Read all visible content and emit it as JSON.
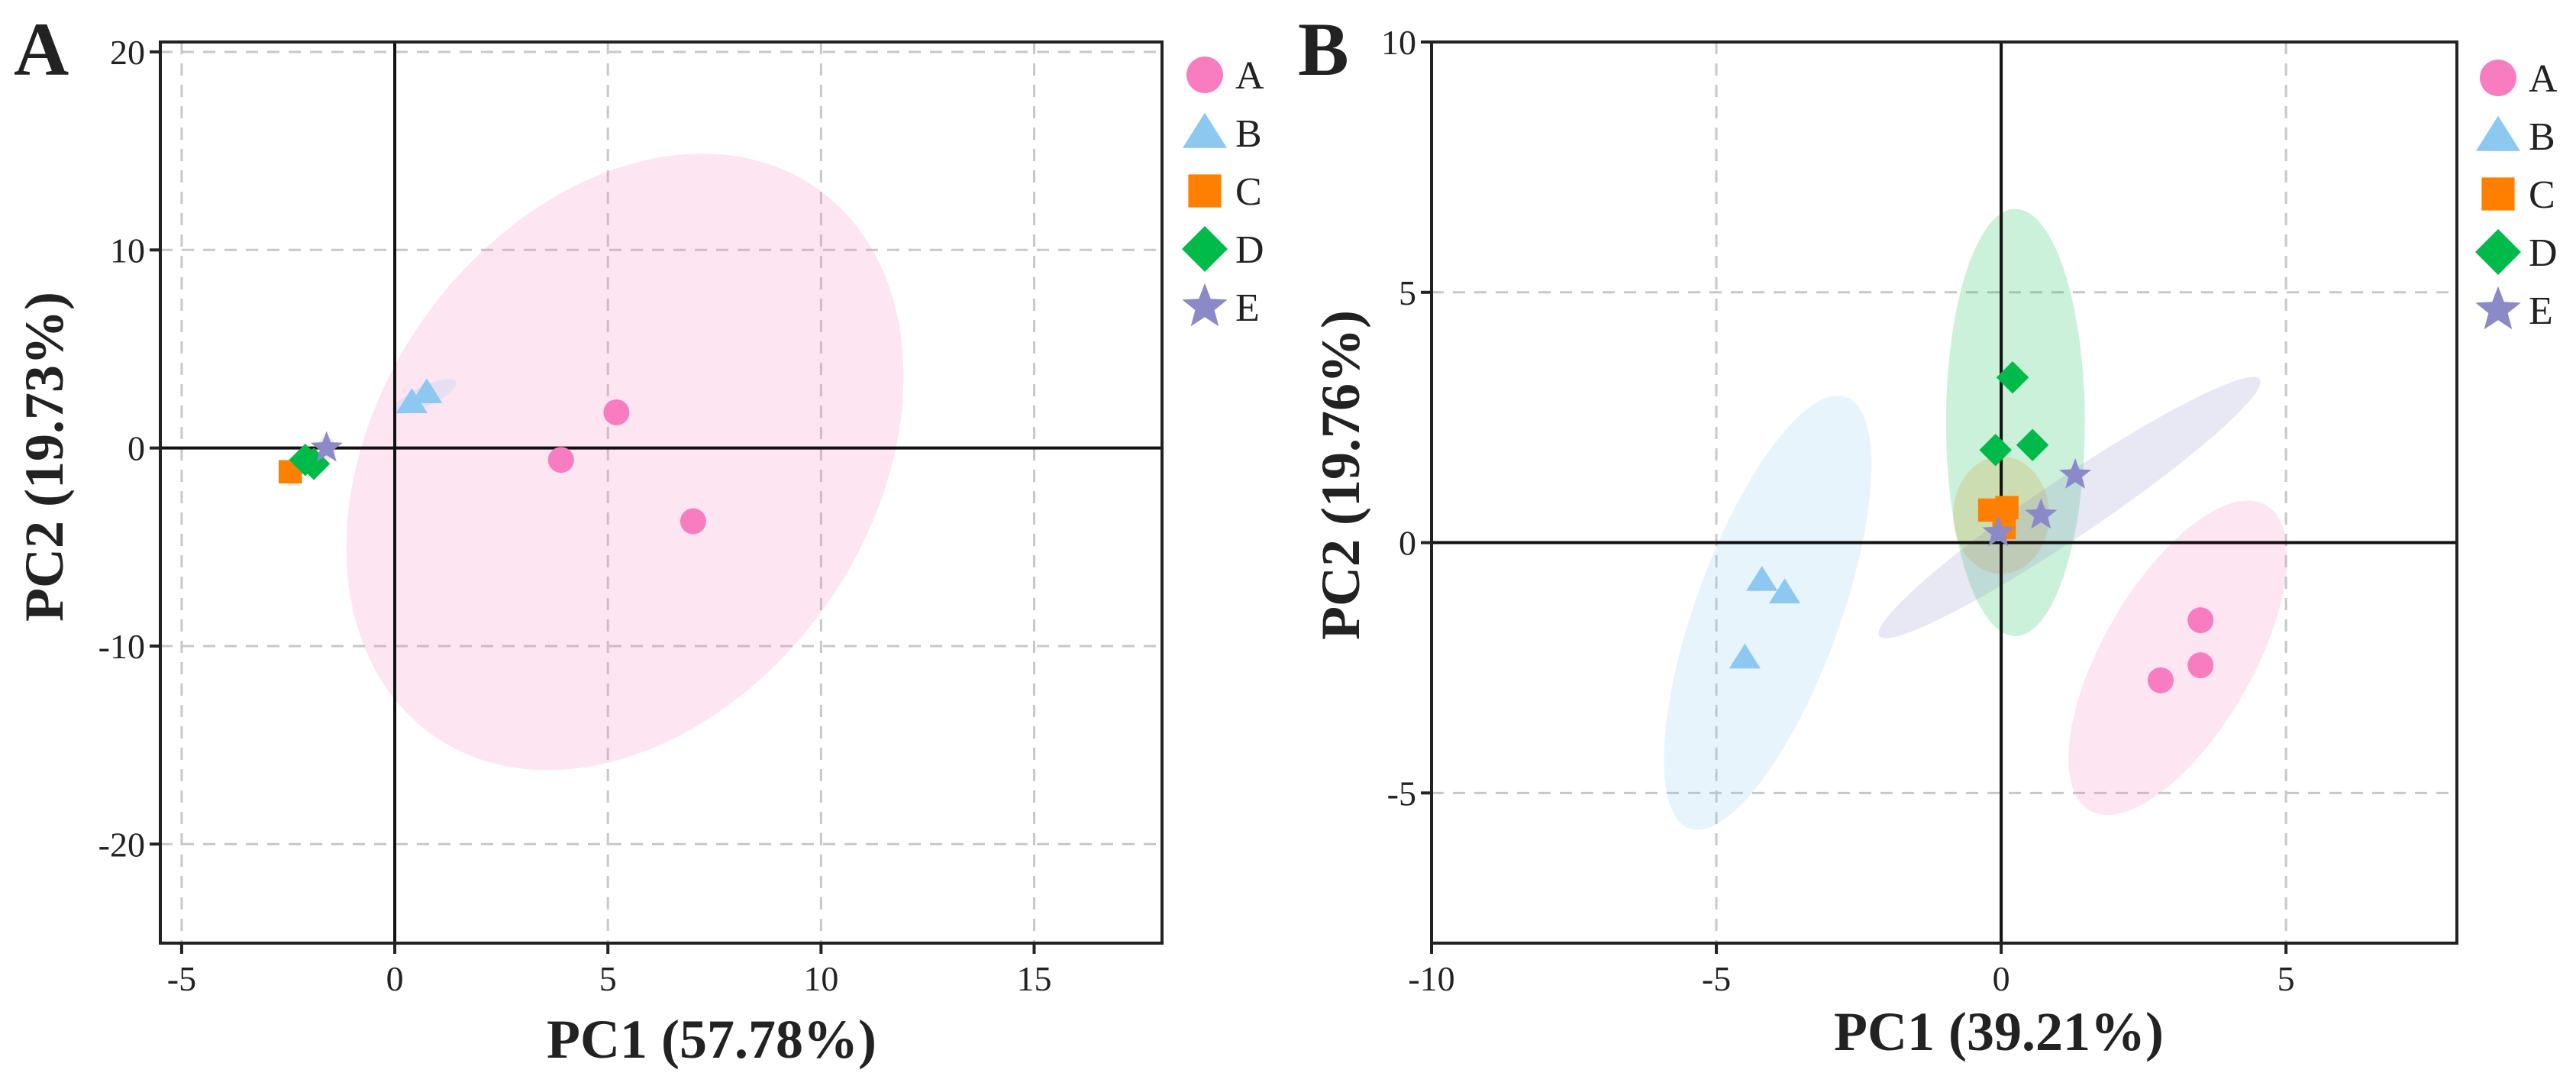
{
  "charts": [
    {
      "panel_label": "A",
      "xlabel": "PC1  (57.78%)",
      "ylabel": "PC2  (19.73%)",
      "xticks": [
        {
          "v": -5,
          "label": "-5"
        },
        {
          "v": 0,
          "label": "0"
        },
        {
          "v": 5,
          "label": "5"
        },
        {
          "v": 10,
          "label": "10"
        },
        {
          "v": 15,
          "label": "15"
        }
      ],
      "yticks": [
        {
          "v": 20,
          "label": "20"
        },
        {
          "v": 10,
          "label": "10"
        },
        {
          "v": 0,
          "label": "0"
        },
        {
          "v": -10,
          "label": "-10"
        },
        {
          "v": -20,
          "label": "-20"
        }
      ]
    },
    {
      "panel_label": "B",
      "xlabel": "PC1  (39.21%)",
      "ylabel": "PC2  (19.76%)",
      "xticks": [
        {
          "v": -10,
          "label": "-10"
        },
        {
          "v": -5,
          "label": "-5"
        },
        {
          "v": 0,
          "label": "0"
        },
        {
          "v": 5,
          "label": "5"
        }
      ],
      "yticks": [
        {
          "v": 10,
          "label": "10"
        },
        {
          "v": 5,
          "label": "5"
        },
        {
          "v": 0,
          "label": "0"
        },
        {
          "v": -5,
          "label": "-5"
        }
      ]
    }
  ],
  "legend": [
    {
      "name": "A",
      "marker": "circle",
      "color": "#F77DC0"
    },
    {
      "name": "B",
      "marker": "triangle",
      "color": "#8DC8F0"
    },
    {
      "name": "C",
      "marker": "square",
      "color": "#FF8000"
    },
    {
      "name": "D",
      "marker": "diamond",
      "color": "#00BB4A"
    },
    {
      "name": "E",
      "marker": "star",
      "color": "#8B89C8"
    }
  ],
  "chart_data": [
    {
      "type": "scatter",
      "title": "",
      "xlabel": "PC1  (57.78%)",
      "ylabel": "PC2  (19.73%)",
      "xlim": [
        -5.5,
        18
      ],
      "ylim": [
        -25,
        20.5
      ],
      "grid": true,
      "legend_position": "right",
      "series": [
        {
          "name": "A",
          "points": [
            [
              3.9,
              -0.6
            ],
            [
              5.2,
              1.8
            ],
            [
              7.0,
              -3.7
            ]
          ],
          "ellipse": {
            "cx": 5.4,
            "cy": -0.7,
            "rx": 8.5,
            "ry": 11.5,
            "angle_deg": 35
          }
        },
        {
          "name": "B",
          "points": [
            [
              0.4,
              2.3
            ],
            [
              0.75,
              2.8
            ]
          ],
          "ellipse": {
            "cx": 0.7,
            "cy": 2.6,
            "rx": 1.2,
            "ry": 0.35,
            "angle_deg": -25
          }
        },
        {
          "name": "C",
          "points": [
            [
              -2.45,
              -1.2
            ]
          ],
          "ellipse": {
            "cx": -2.4,
            "cy": -1.2,
            "rx": 0.25,
            "ry": 0.5,
            "angle_deg": 0
          }
        },
        {
          "name": "D",
          "points": [
            [
              -2.1,
              -0.6
            ],
            [
              -1.9,
              -0.8
            ]
          ],
          "ellipse": {
            "cx": -2.0,
            "cy": -0.7,
            "rx": 0.3,
            "ry": 0.3,
            "angle_deg": 0
          }
        },
        {
          "name": "E",
          "points": [
            [
              -1.6,
              0.0
            ]
          ],
          "ellipse": {
            "cx": -1.6,
            "cy": 0.0,
            "rx": 0.3,
            "ry": 0.4,
            "angle_deg": 0
          }
        }
      ]
    },
    {
      "type": "scatter",
      "title": "",
      "xlabel": "PC1  (39.21%)",
      "ylabel": "PC2  (19.76%)",
      "xlim": [
        -10,
        8
      ],
      "ylim": [
        -8,
        10
      ],
      "grid": true,
      "legend_position": "right",
      "series": [
        {
          "name": "A",
          "points": [
            [
              3.5,
              -1.55
            ],
            [
              3.5,
              -2.45
            ],
            [
              2.8,
              -2.75
            ]
          ],
          "ellipse": {
            "cx": 3.1,
            "cy": -2.3,
            "rx": 1.4,
            "ry": 3.3,
            "angle_deg": 30
          }
        },
        {
          "name": "B",
          "points": [
            [
              -4.2,
              -0.75
            ],
            [
              -3.8,
              -1.0
            ],
            [
              -4.5,
              -2.3
            ]
          ],
          "ellipse": {
            "cx": -4.1,
            "cy": -1.4,
            "rx": 1.35,
            "ry": 4.3,
            "angle_deg": 20
          }
        },
        {
          "name": "C",
          "points": [
            [
              -0.2,
              0.65
            ],
            [
              0.05,
              0.3
            ],
            [
              0.1,
              0.7
            ]
          ],
          "ellipse": {
            "cx": 0.0,
            "cy": 0.55,
            "rx": 0.9,
            "ry": 1.1,
            "angle_deg": 0
          }
        },
        {
          "name": "D",
          "points": [
            [
              0.2,
              3.3
            ],
            [
              -0.1,
              1.85
            ],
            [
              0.55,
              1.95
            ]
          ],
          "ellipse": {
            "cx": 0.25,
            "cy": 2.4,
            "rx": 1.3,
            "ry": 4.0,
            "angle_deg": 0
          }
        },
        {
          "name": "E",
          "points": [
            [
              -0.05,
              0.2
            ],
            [
              0.7,
              0.55
            ],
            [
              1.3,
              1.35
            ]
          ],
          "ellipse": {
            "cx": 1.2,
            "cy": 0.7,
            "rx": 4.3,
            "ry": 0.55,
            "angle_deg": -34
          }
        }
      ]
    }
  ]
}
